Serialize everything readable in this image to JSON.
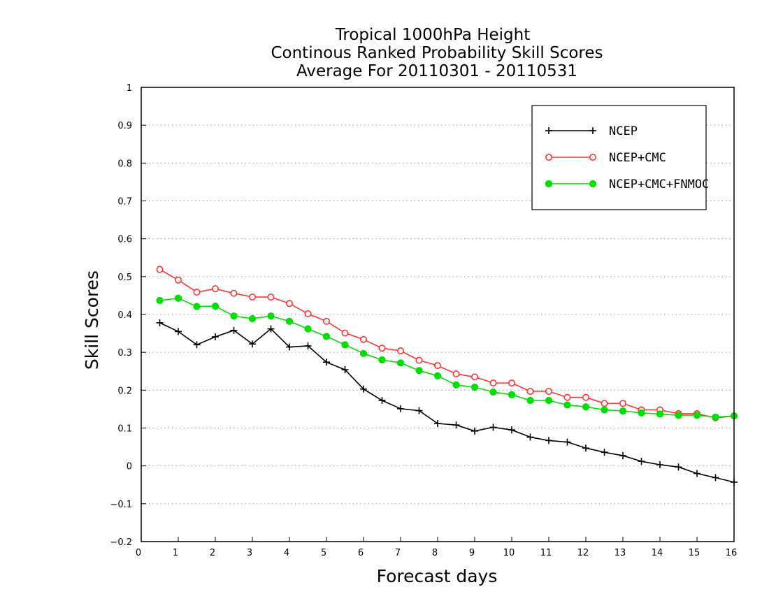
{
  "chart_data": {
    "type": "line",
    "title_lines": [
      "Tropical 1000hPa Height",
      "Continous Ranked Probability Skill Scores",
      "Average For 20110301 - 20110531"
    ],
    "xlabel": "Forecast days",
    "ylabel": "Skill Scores",
    "xlim": [
      0,
      16
    ],
    "ylim": [
      -0.2,
      1
    ],
    "x_ticks": [
      0,
      1,
      2,
      3,
      4,
      5,
      6,
      7,
      8,
      9,
      10,
      11,
      12,
      13,
      14,
      15,
      16
    ],
    "x_tick_labels": [
      "0",
      "1",
      "2",
      "3",
      "4",
      "5",
      "6",
      "7",
      "8",
      "9",
      "10",
      "11",
      "12",
      "13",
      "14",
      "15",
      "16"
    ],
    "y_ticks": [
      -0.2,
      -0.1,
      0,
      0.1,
      0.2,
      0.3,
      0.4,
      0.5,
      0.6,
      0.7,
      0.8,
      0.9,
      1
    ],
    "y_tick_labels": [
      "−0.2",
      "−0.1",
      "0",
      "0.1",
      "0.2",
      "0.3",
      "0.4",
      "0.5",
      "0.6",
      "0.7",
      "0.8",
      "0.9",
      "1"
    ],
    "grid": "horizontal dotted",
    "legend_position": "top-right",
    "x": [
      0.5,
      1.0,
      1.5,
      2.0,
      2.5,
      3.0,
      3.5,
      4.0,
      4.5,
      5.0,
      5.5,
      6.0,
      6.5,
      7.0,
      7.5,
      8.0,
      8.5,
      9.0,
      9.5,
      10.0,
      10.5,
      11.0,
      11.5,
      12.0,
      12.5,
      13.0,
      13.5,
      14.0,
      14.5,
      15.0,
      15.5,
      16.0
    ],
    "series": [
      {
        "name": "NCEP",
        "color": "#000000",
        "marker": "plus",
        "values": [
          0.378,
          0.355,
          0.32,
          0.341,
          0.358,
          0.322,
          0.362,
          0.314,
          0.317,
          0.274,
          0.254,
          0.203,
          0.173,
          0.151,
          0.146,
          0.112,
          0.108,
          0.092,
          0.102,
          0.095,
          0.076,
          0.067,
          0.063,
          0.047,
          0.036,
          0.027,
          0.012,
          0.003,
          -0.003,
          -0.02,
          -0.031,
          -0.043
        ]
      },
      {
        "name": "NCEP+CMC",
        "color": "#ff3333",
        "marker": "open-circle",
        "values": [
          0.519,
          0.491,
          0.459,
          0.468,
          0.456,
          0.446,
          0.446,
          0.429,
          0.402,
          0.382,
          0.351,
          0.334,
          0.311,
          0.304,
          0.279,
          0.265,
          0.243,
          0.235,
          0.219,
          0.219,
          0.197,
          0.197,
          0.181,
          0.181,
          0.165,
          0.165,
          0.148,
          0.148,
          0.138,
          0.138,
          0.127,
          0.132
        ]
      },
      {
        "name": "NCEP+CMC+FNMOC",
        "color": "#00dd00",
        "marker": "filled-circle",
        "values": [
          0.437,
          0.443,
          0.421,
          0.422,
          0.396,
          0.389,
          0.396,
          0.382,
          0.362,
          0.342,
          0.32,
          0.297,
          0.28,
          0.272,
          0.252,
          0.238,
          0.214,
          0.208,
          0.195,
          0.188,
          0.173,
          0.173,
          0.161,
          0.156,
          0.148,
          0.145,
          0.14,
          0.137,
          0.134,
          0.134,
          0.129,
          0.132
        ]
      }
    ]
  }
}
